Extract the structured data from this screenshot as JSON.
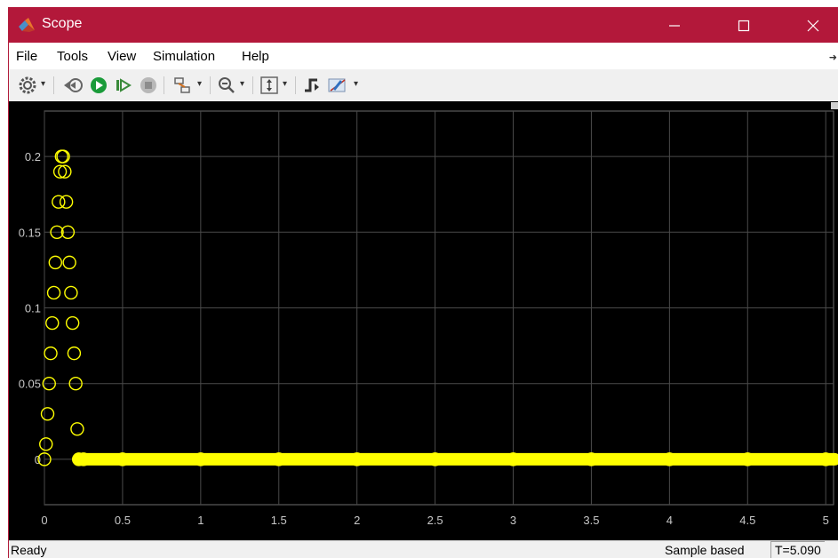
{
  "window": {
    "title": "Scope",
    "title_bar_color": "#b3183a",
    "controls": [
      "minimize-icon",
      "maximize-icon",
      "close-icon"
    ]
  },
  "menu": {
    "items": [
      "File",
      "Tools",
      "View",
      "Simulation",
      "Help"
    ]
  },
  "toolbar": {
    "icons": [
      "settings-icon",
      "step-back-icon",
      "run-icon",
      "step-forward-icon",
      "stop-icon",
      "highlight-icon",
      "zoom-icon",
      "autoscale-icon",
      "triggers-icon",
      "measurements-icon"
    ]
  },
  "status": {
    "ready": "Ready",
    "mode": "Sample based",
    "time": "T=5.090"
  },
  "chart_data": {
    "type": "scatter",
    "marker": "circle",
    "color": "#ffff00",
    "background": "#000000",
    "grid": true,
    "xlim": [
      0,
      5.05
    ],
    "ylim": [
      -0.03,
      0.23
    ],
    "x_ticks": [
      "0",
      "0.5",
      "1",
      "1.5",
      "2",
      "2.5",
      "3",
      "3.5",
      "4",
      "4.5",
      "5"
    ],
    "y_ticks": [
      "0",
      "0.05",
      "0.1",
      "0.15",
      "0.2"
    ],
    "series": [
      {
        "x": [
          0,
          0.01,
          0.02,
          0.03,
          0.04,
          0.05,
          0.06,
          0.07,
          0.08,
          0.09,
          0.1,
          0.11,
          0.12,
          0.13,
          0.14,
          0.15,
          0.16,
          0.17,
          0.18,
          0.19,
          0.2,
          0.21,
          0.22,
          0.25,
          0.5,
          1.0,
          1.5,
          2.0,
          2.5,
          3.0,
          3.5,
          4.0,
          4.5,
          5.0
        ],
        "y": [
          0,
          0.01,
          0.03,
          0.05,
          0.07,
          0.09,
          0.11,
          0.13,
          0.15,
          0.17,
          0.19,
          0.2,
          0.2,
          0.19,
          0.17,
          0.15,
          0.13,
          0.11,
          0.09,
          0.07,
          0.05,
          0.02,
          0,
          0,
          0,
          0,
          0,
          0,
          0,
          0,
          0,
          0,
          0,
          0
        ]
      }
    ]
  }
}
